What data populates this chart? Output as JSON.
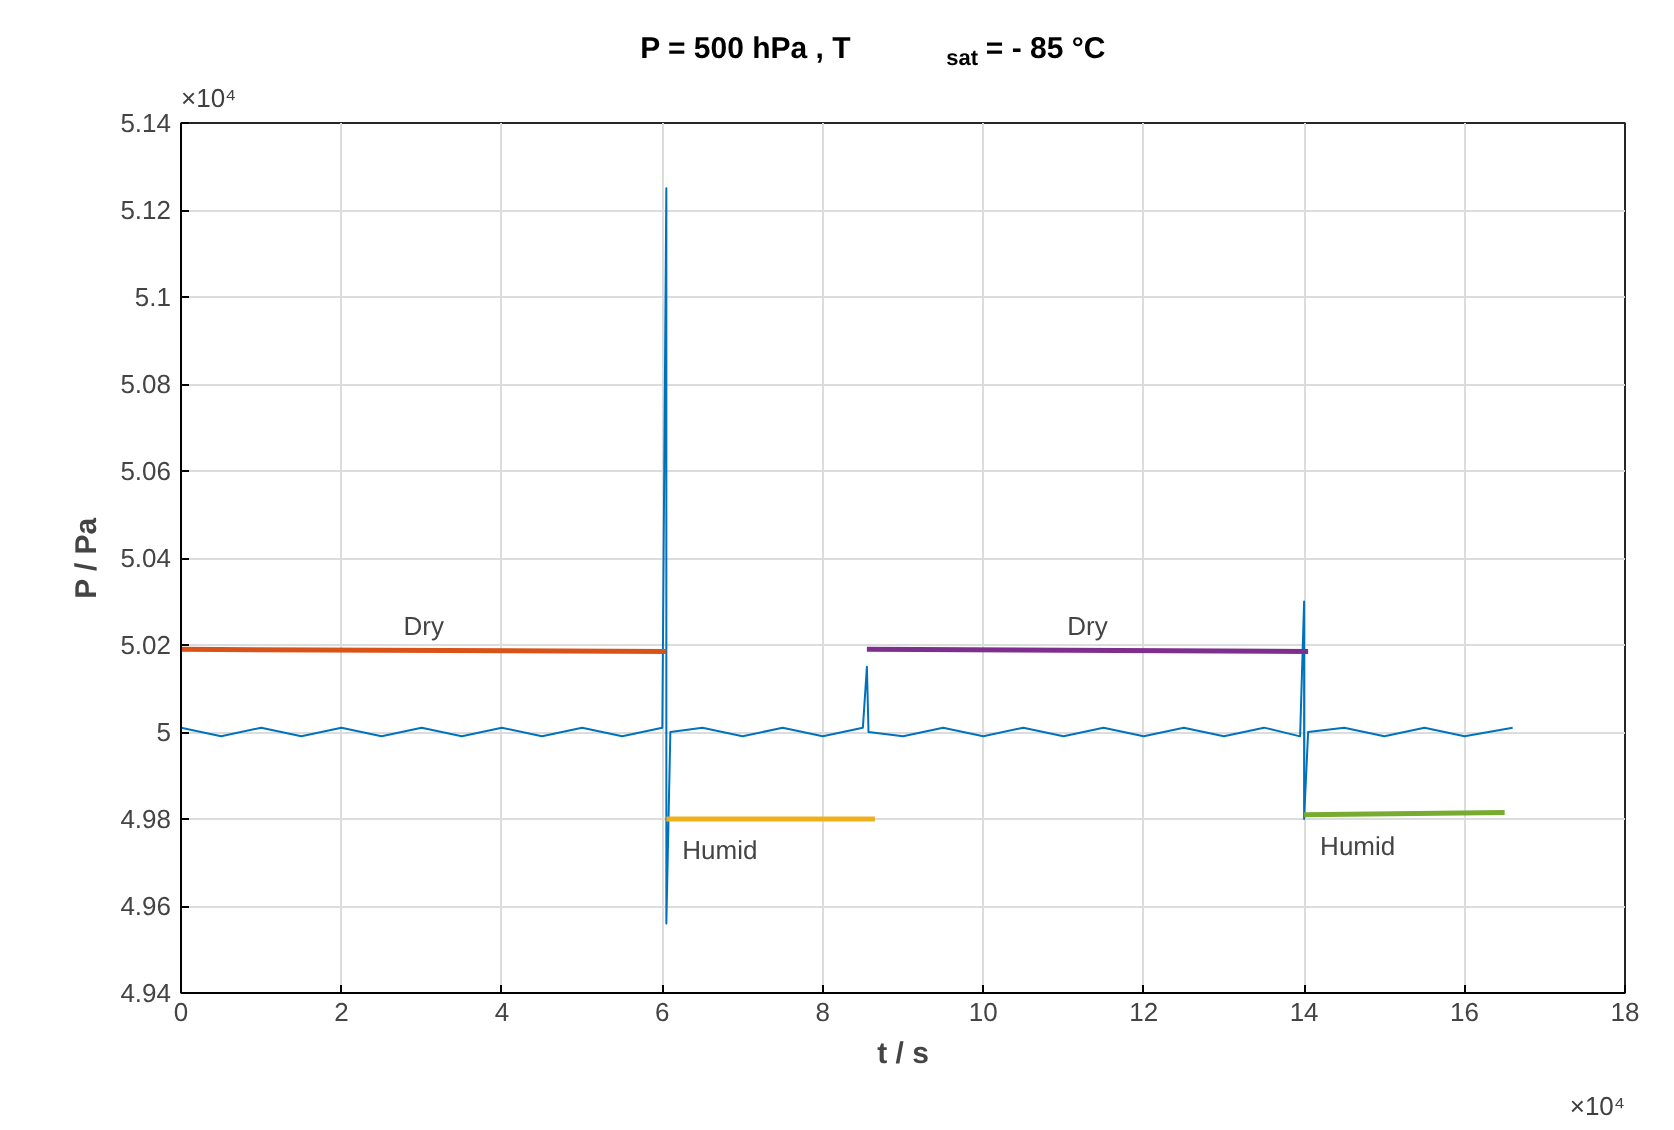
{
  "chart_data": {
    "type": "line",
    "title": "P =  500 hPa ,  T$_{sat}$ = - 85 °C",
    "xlabel": "t / s",
    "ylabel": "P / Pa",
    "xlim": [
      0,
      18
    ],
    "xticks": [
      0,
      2,
      4,
      6,
      8,
      10,
      12,
      14,
      16,
      18
    ],
    "ylim": [
      4.94,
      5.14
    ],
    "yticks": [
      4.94,
      4.96,
      4.98,
      5,
      5.02,
      5.04,
      5.06,
      5.08,
      5.1,
      5.12,
      5.14
    ],
    "grid": true,
    "series": [
      {
        "color": "#0072bd",
        "x": [
          0,
          0.5,
          1,
          1.5,
          2,
          2.5,
          3,
          3.5,
          4,
          4.5,
          5,
          5.5,
          6.0,
          6.05,
          6.05,
          6.1,
          6.5,
          7,
          7.5,
          8,
          8.5,
          8.55,
          8.57,
          9,
          9.5,
          10,
          10.5,
          11,
          11.5,
          12,
          12.5,
          13,
          13.5,
          13.95,
          14.0,
          14.0,
          14.05,
          14.5,
          15,
          15.5,
          16,
          16.6
        ],
        "values": [
          5.001,
          4.999,
          5.001,
          4.999,
          5.001,
          4.999,
          5.001,
          4.999,
          5.001,
          4.999,
          5.001,
          4.999,
          5.001,
          5.125,
          4.956,
          5.0,
          5.001,
          4.999,
          5.001,
          4.999,
          5.001,
          5.015,
          5.0,
          4.999,
          5.001,
          4.999,
          5.001,
          4.999,
          5.001,
          4.999,
          5.001,
          4.999,
          5.001,
          4.999,
          5.03,
          4.98,
          5.0,
          5.001,
          4.999,
          5.001,
          4.999,
          5.001
        ]
      },
      {
        "color": "#d95319",
        "x": [
          0,
          6.05
        ],
        "values": [
          5.019,
          5.0185
        ]
      },
      {
        "color": "#edb120",
        "x": [
          6.05,
          8.65
        ],
        "values": [
          4.98,
          4.98
        ]
      },
      {
        "color": "#7e2f8e",
        "x": [
          8.55,
          14.05
        ],
        "values": [
          5.019,
          5.0185
        ]
      },
      {
        "color": "#77ac30",
        "x": [
          14.0,
          16.5
        ],
        "values": [
          4.981,
          4.9815
        ]
      }
    ],
    "annotations": [
      "Dry",
      "Humid",
      "Dry",
      "Humid",
      "×10⁴",
      "×10⁴"
    ]
  }
}
